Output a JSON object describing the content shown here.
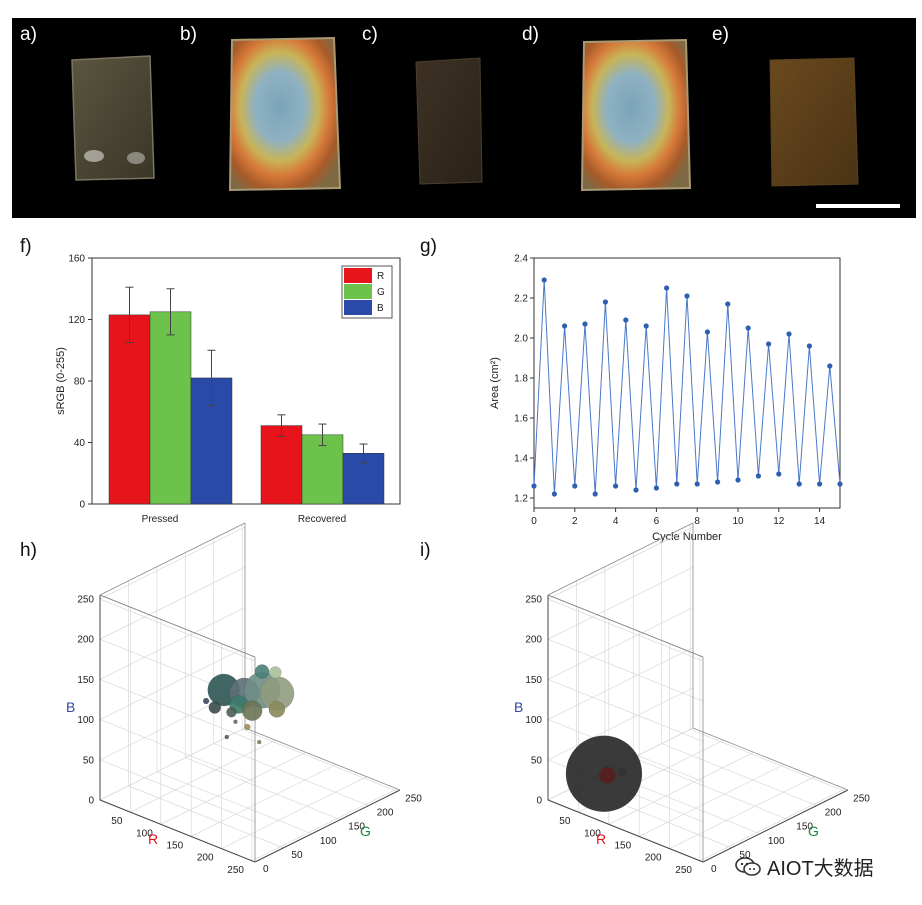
{
  "panels": {
    "a": "a)",
    "b": "b)",
    "c": "c)",
    "d": "d)",
    "e": "e)",
    "f": "f)",
    "g": "g)",
    "h": "h)",
    "i": "i)"
  },
  "colors": {
    "R": "#e8141b",
    "G": "#6cc24a",
    "B": "#2a4aa8",
    "scatter": "#2f5fb0"
  },
  "watermark": "AIOT大数据",
  "chart_data": [
    {
      "id": "f",
      "type": "bar",
      "ylabel": "sRGB (0-255)",
      "ylim": [
        0,
        160
      ],
      "yticks": [
        "0",
        "40",
        "80",
        "120",
        "160"
      ],
      "categories": [
        "Pressed",
        "Recovered"
      ],
      "series": [
        {
          "name": "R",
          "values": [
            123,
            51
          ],
          "errors": [
            18,
            7
          ]
        },
        {
          "name": "G",
          "values": [
            125,
            45
          ],
          "errors": [
            15,
            7
          ]
        },
        {
          "name": "B",
          "values": [
            82,
            33
          ],
          "errors": [
            18,
            6
          ]
        }
      ],
      "legend": "top-right"
    },
    {
      "id": "g",
      "type": "line",
      "xlabel": "Cycle Number",
      "ylabel": "Area (cm²)",
      "xlim": [
        0,
        15
      ],
      "ylim": [
        1.15,
        2.4
      ],
      "xticks": [
        "0",
        "2",
        "4",
        "6",
        "8",
        "10",
        "12",
        "14"
      ],
      "yticks": [
        "1.2",
        "1.4",
        "1.6",
        "1.8",
        "2.0",
        "2.2",
        "2.4"
      ],
      "x": [
        0,
        0.5,
        1,
        1.5,
        2,
        2.5,
        3,
        3.5,
        4,
        4.5,
        5,
        5.5,
        6,
        6.5,
        7,
        7.5,
        8,
        8.5,
        9,
        9.5,
        10,
        10.5,
        11,
        11.5,
        12,
        12.5,
        13,
        13.5,
        14,
        14.5,
        15
      ],
      "y": [
        1.26,
        2.29,
        1.22,
        2.06,
        1.26,
        2.07,
        1.22,
        2.18,
        1.26,
        2.09,
        1.24,
        2.06,
        1.25,
        2.25,
        1.27,
        2.21,
        1.27,
        2.03,
        1.28,
        2.17,
        1.29,
        2.05,
        1.31,
        1.97,
        1.32,
        2.02,
        1.27,
        1.96,
        1.27,
        1.86,
        1.27
      ]
    },
    {
      "id": "h",
      "type": "scatter3d",
      "axes": {
        "x": "R",
        "y": "G",
        "z": "B"
      },
      "ticks": {
        "r": [
          "50",
          "100",
          "150",
          "200",
          "250"
        ],
        "g": [
          "0",
          "50",
          "100",
          "150",
          "200",
          "250"
        ],
        "b": [
          "0",
          "50",
          "100",
          "150",
          "200",
          "250"
        ]
      },
      "points": [
        {
          "r": 110,
          "g": 100,
          "b": 135,
          "size": 16,
          "color": "#2e5552"
        },
        {
          "r": 130,
          "g": 115,
          "b": 132,
          "size": 15,
          "color": "#5d6f74"
        },
        {
          "r": 150,
          "g": 125,
          "b": 138,
          "size": 18,
          "color": "#6f8f86"
        },
        {
          "r": 165,
          "g": 135,
          "b": 135,
          "size": 17,
          "color": "#8f9b7d"
        },
        {
          "r": 125,
          "g": 110,
          "b": 118,
          "size": 9,
          "color": "#3b7a6a"
        },
        {
          "r": 140,
          "g": 118,
          "b": 112,
          "size": 10,
          "color": "#6c7457"
        },
        {
          "r": 100,
          "g": 95,
          "b": 112,
          "size": 6,
          "color": "#3a4a4a"
        },
        {
          "r": 118,
          "g": 105,
          "b": 108,
          "size": 5,
          "color": "#4b5f52"
        },
        {
          "r": 160,
          "g": 140,
          "b": 112,
          "size": 8,
          "color": "#8a8a5a"
        },
        {
          "r": 150,
          "g": 148,
          "b": 152,
          "size": 6,
          "color": "#a8c09a"
        },
        {
          "r": 145,
          "g": 130,
          "b": 158,
          "size": 7,
          "color": "#4a7f78"
        },
        {
          "r": 95,
          "g": 85,
          "b": 122,
          "size": 3,
          "color": "#3c4760"
        },
        {
          "r": 130,
          "g": 120,
          "b": 88,
          "size": 3,
          "color": "#a08f5a"
        },
        {
          "r": 115,
          "g": 100,
          "b": 78,
          "size": 2,
          "color": "#555555"
        },
        {
          "r": 120,
          "g": 110,
          "b": 95,
          "size": 2,
          "color": "#667060"
        },
        {
          "r": 145,
          "g": 125,
          "b": 72,
          "size": 2,
          "color": "#808060"
        }
      ]
    },
    {
      "id": "i",
      "type": "scatter3d",
      "axes": {
        "x": "R",
        "y": "G",
        "z": "B"
      },
      "ticks": {
        "r": [
          "50",
          "100",
          "150",
          "200",
          "250"
        ],
        "g": [
          "0",
          "50",
          "100",
          "150",
          "200",
          "250"
        ],
        "b": [
          "0",
          "50",
          "100",
          "150",
          "200",
          "250"
        ]
      },
      "points": [
        {
          "r": 50,
          "g": 45,
          "b": 32,
          "size": 38,
          "color": "#252525"
        },
        {
          "r": 60,
          "g": 40,
          "b": 35,
          "size": 8,
          "color": "#5a1e1e"
        },
        {
          "r": 75,
          "g": 50,
          "b": 40,
          "size": 4,
          "color": "#333333"
        }
      ]
    }
  ]
}
